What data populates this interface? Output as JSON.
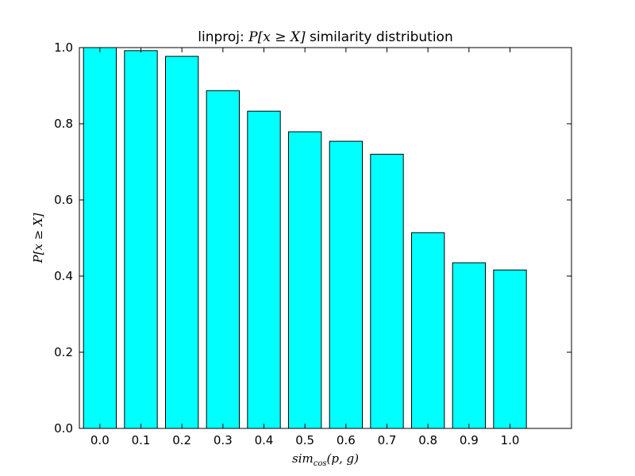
{
  "chart_data": {
    "type": "bar",
    "title_prefix": "linproj: ",
    "title_math": "P[x ≥ X]",
    "title_suffix": " similarity distribution",
    "xlabel": "sim_cos(p, g)",
    "xlabel_main": "sim",
    "xlabel_sub": "cos",
    "xlabel_args": "(p, g)",
    "ylabel": "P[x ≥ X]",
    "categories": [
      "0.0",
      "0.1",
      "0.2",
      "0.3",
      "0.4",
      "0.5",
      "0.6",
      "0.7",
      "0.8",
      "0.9",
      "1.0"
    ],
    "values": [
      1.0,
      0.992,
      0.977,
      0.887,
      0.833,
      0.779,
      0.754,
      0.72,
      0.514,
      0.435,
      0.416
    ],
    "ylim": [
      0,
      1.0
    ],
    "yticks": [
      "0.0",
      "0.2",
      "0.4",
      "0.6",
      "0.8",
      "1.0"
    ],
    "grid": false,
    "colors": {
      "bar_fill": "#00ffff",
      "bar_edge": "#000000",
      "axes": "#000000"
    }
  }
}
